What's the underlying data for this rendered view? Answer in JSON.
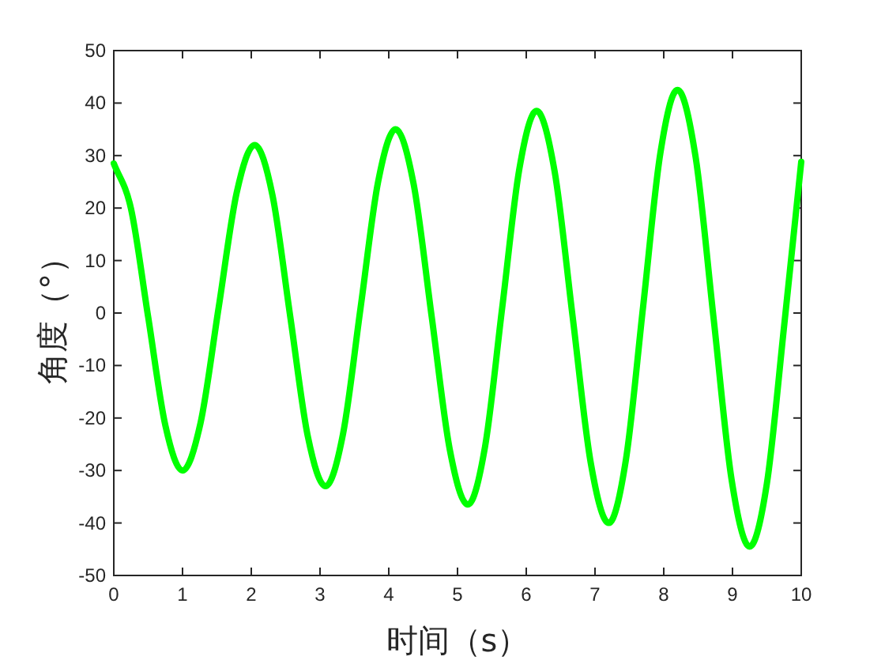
{
  "chart_data": {
    "type": "line",
    "xlabel": "时间（s）",
    "ylabel": "角度（°）",
    "color": "#00ff00",
    "x": [
      0,
      0.25,
      0.5,
      0.75,
      1.0,
      1.2625,
      1.525,
      1.7875,
      2.05,
      2.3075,
      2.565,
      2.8225,
      3.08,
      3.335,
      3.59,
      3.845,
      4.1,
      4.3625,
      4.625,
      4.8875,
      5.15,
      5.4,
      5.65,
      5.9,
      6.15,
      6.4125,
      6.675,
      6.9375,
      7.2,
      7.45,
      7.7,
      7.95,
      8.2,
      8.4625,
      8.725,
      8.9875,
      9.25,
      9.5,
      9.75,
      10
    ],
    "values": [
      28.5,
      19.9,
      -0.75,
      -21.4,
      -30,
      -20.9,
      1,
      22.9,
      32,
      22.5,
      -0.5,
      -23.5,
      -33,
      -23,
      1,
      25,
      35,
      24.5,
      -0.75,
      -26,
      -36.5,
      -25.5,
      1,
      27.5,
      38.5,
      27,
      -0.75,
      -28.5,
      -40,
      -27.9,
      1.25,
      30.4,
      42.5,
      29.8,
      -1,
      -31.8,
      -44.5,
      -32.5,
      -2.6,
      28.8
    ],
    "xlim": [
      0,
      10
    ],
    "ylim": [
      -50,
      50
    ],
    "xticks": [
      0,
      1,
      2,
      3,
      4,
      5,
      6,
      7,
      8,
      9,
      10
    ],
    "yticks": [
      -50,
      -40,
      -30,
      -20,
      -10,
      0,
      10,
      20,
      30,
      40,
      50
    ]
  }
}
